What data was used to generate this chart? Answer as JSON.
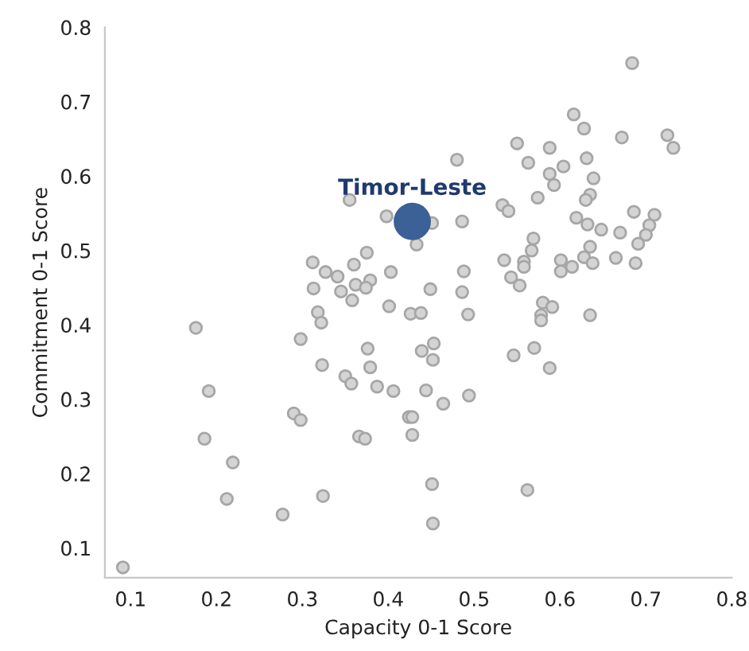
{
  "chart_data": {
    "type": "scatter",
    "xlabel": "Capacity 0-1 Score",
    "ylabel": "Commitment 0-1 Score",
    "xlim": [
      0.07,
      0.8
    ],
    "ylim": [
      0.06,
      0.8
    ],
    "xticks": [
      0.1,
      0.2,
      0.3,
      0.4,
      0.5,
      0.6,
      0.7,
      0.8
    ],
    "yticks": [
      0.1,
      0.2,
      0.3,
      0.4,
      0.5,
      0.6,
      0.7,
      0.8
    ],
    "grid": false,
    "legend": false,
    "marker": "circle",
    "series": [
      {
        "color": "#d4d4d4",
        "x": [
          0.355,
          0.398,
          0.451,
          0.433,
          0.312,
          0.375,
          0.36,
          0.327,
          0.341,
          0.403,
          0.379,
          0.362,
          0.374,
          0.313,
          0.345,
          0.449,
          0.358,
          0.401,
          0.318,
          0.426,
          0.438,
          0.684,
          0.616,
          0.628,
          0.672,
          0.725,
          0.732,
          0.55,
          0.588,
          0.631,
          0.48,
          0.563,
          0.588,
          0.604,
          0.639,
          0.593,
          0.574,
          0.635,
          0.63,
          0.533,
          0.54,
          0.686,
          0.71,
          0.619,
          0.632,
          0.648,
          0.67,
          0.704,
          0.7,
          0.486,
          0.569,
          0.691,
          0.567,
          0.635,
          0.535,
          0.558,
          0.558,
          0.601,
          0.628,
          0.638,
          0.665,
          0.688,
          0.601,
          0.614,
          0.488,
          0.543,
          0.553,
          0.486,
          0.58,
          0.591,
          0.493,
          0.578,
          0.578,
          0.635,
          0.176,
          0.322,
          0.298,
          0.376,
          0.439,
          0.453,
          0.452,
          0.323,
          0.379,
          0.35,
          0.357,
          0.387,
          0.406,
          0.444,
          0.464,
          0.191,
          0.29,
          0.298,
          0.424,
          0.428,
          0.428,
          0.186,
          0.366,
          0.373,
          0.219,
          0.212,
          0.324,
          0.277,
          0.451,
          0.452,
          0.091,
          0.546,
          0.57,
          0.588,
          0.494,
          0.562
        ],
        "values": [
          0.568,
          0.546,
          0.537,
          0.508,
          0.484,
          0.497,
          0.481,
          0.471,
          0.465,
          0.471,
          0.46,
          0.454,
          0.45,
          0.449,
          0.445,
          0.448,
          0.433,
          0.425,
          0.417,
          0.415,
          0.416,
          0.752,
          0.683,
          0.664,
          0.652,
          0.655,
          0.638,
          0.644,
          0.638,
          0.624,
          0.622,
          0.618,
          0.603,
          0.613,
          0.597,
          0.588,
          0.571,
          0.575,
          0.568,
          0.561,
          0.553,
          0.552,
          0.548,
          0.544,
          0.535,
          0.528,
          0.524,
          0.534,
          0.521,
          0.539,
          0.516,
          0.509,
          0.5,
          0.505,
          0.487,
          0.485,
          0.478,
          0.487,
          0.491,
          0.483,
          0.49,
          0.483,
          0.472,
          0.478,
          0.472,
          0.464,
          0.453,
          0.444,
          0.43,
          0.424,
          0.414,
          0.413,
          0.406,
          0.413,
          0.396,
          0.403,
          0.381,
          0.368,
          0.365,
          0.375,
          0.353,
          0.346,
          0.343,
          0.331,
          0.321,
          0.317,
          0.311,
          0.312,
          0.294,
          0.311,
          0.281,
          0.272,
          0.276,
          0.276,
          0.252,
          0.247,
          0.25,
          0.247,
          0.215,
          0.166,
          0.17,
          0.145,
          0.186,
          0.133,
          0.074,
          0.359,
          0.369,
          0.342,
          0.305,
          0.178
        ]
      },
      {
        "name": "Timor-Leste",
        "color": "#3b6196",
        "x": [
          0.428
        ],
        "values": [
          0.539
        ]
      }
    ]
  }
}
